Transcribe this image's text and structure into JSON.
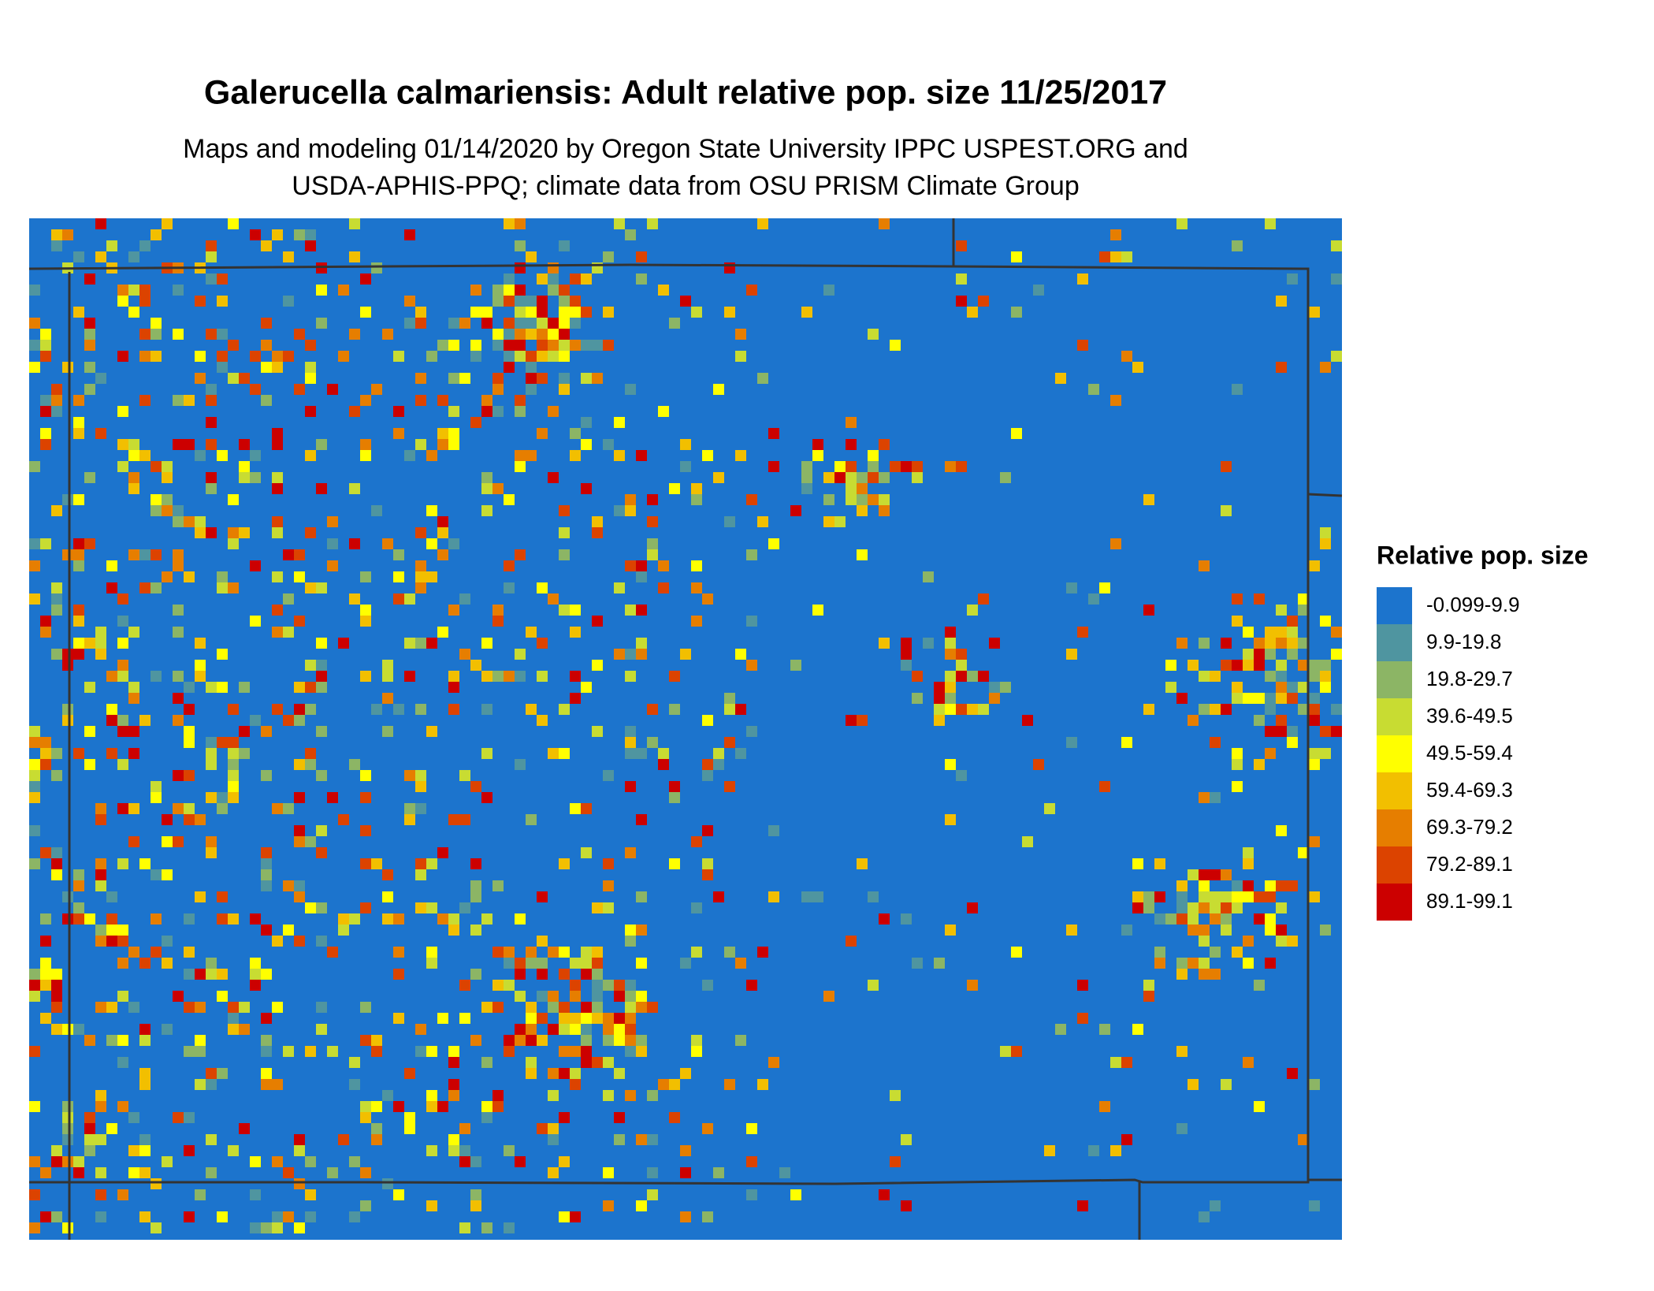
{
  "map": {
    "title": "Galerucella calmariensis: Adult relative pop. size 11/25/2017",
    "subtitle": [
      "Maps and modeling 01/14/2020 by Oregon State University IPPC USPEST.ORG and",
      "USDA-APHIS-PPQ; climate data from OSU PRISM Climate Group"
    ],
    "legend": {
      "title": "Relative pop. size",
      "items": [
        {
          "label": "-0.099-9.9",
          "color": "#1c74cd"
        },
        {
          "label": "9.9-19.8",
          "color": "#4f95a0"
        },
        {
          "label": "19.8-29.7",
          "color": "#8cb565"
        },
        {
          "label": "39.6-49.5",
          "color": "#c8dc32"
        },
        {
          "label": "49.5-59.4",
          "color": "#ffff00"
        },
        {
          "label": "59.4-69.3",
          "color": "#f2bf00"
        },
        {
          "label": "69.3-79.2",
          "color": "#e67e00"
        },
        {
          "label": "79.2-89.1",
          "color": "#dc4300"
        },
        {
          "label": "89.1-99.1",
          "color": "#cc0000"
        }
      ]
    }
  }
}
